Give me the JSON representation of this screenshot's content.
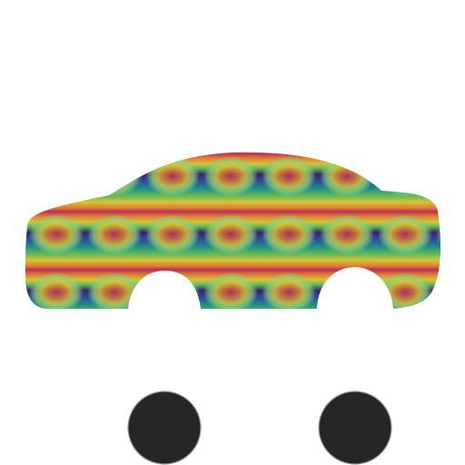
{
  "canvas": {
    "background_color": "#ffffff"
  },
  "car": {
    "icon": "car-icon",
    "body_pattern": {
      "description_colors": [
        "#3a1f6b",
        "#2d5aa0",
        "#1f8a86",
        "#5cb85c",
        "#d4c53a",
        "#e07a30",
        "#b5305a"
      ],
      "accent_dark": "#3a1f6b",
      "accent_light": "#d4c53a"
    },
    "wheel_color": "#262626",
    "wheel_outline_color": "#9a9a9a"
  }
}
